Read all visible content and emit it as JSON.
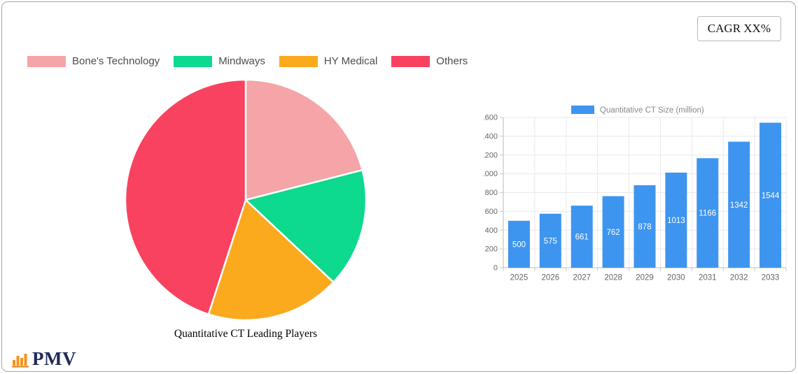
{
  "cagr_badge": {
    "label": "CAGR XX%"
  },
  "logo": {
    "text": "PMV",
    "icon": "bar-chart-logo-icon",
    "text_color": "#20295a",
    "icon_color": "#f6921e"
  },
  "style": {
    "axis_text_color": "#666666",
    "legend_text_color": "#4d4d4d",
    "bar_legend_text_color": "#8a8a8a",
    "grid_color": "#e9e9e9",
    "axis_line_color": "#c9c9c9",
    "value_label_color": "#ffffff"
  },
  "chart_data": [
    {
      "type": "pie",
      "title": "Quantitative CT Leading Players",
      "labels": [
        "Bone's Technology",
        "Mindways",
        "HY Medical",
        "Others"
      ],
      "values": [
        21,
        16,
        18,
        45
      ],
      "colors": [
        "#f5a4a7",
        "#0dd98f",
        "#fba91d",
        "#f8425f"
      ],
      "start_angle_deg": 0,
      "direction": "clockwise",
      "legend_position": "top-left",
      "slice_border_color": "#ffffff"
    },
    {
      "type": "bar",
      "categories": [
        "2025",
        "2026",
        "2027",
        "2028",
        "2029",
        "2030",
        "2031",
        "2032",
        "2033"
      ],
      "series": [
        {
          "name": "Quantitative CT Size (million)",
          "values": [
            500,
            575,
            661,
            762,
            878,
            1013,
            1166,
            1342,
            1544
          ]
        }
      ],
      "bar_color": "#3d95ef",
      "ylim": [
        0,
        1600
      ],
      "ytick_step": 200,
      "grid": true,
      "legend_position": "top-center",
      "value_labels": "inside-center-white"
    }
  ]
}
